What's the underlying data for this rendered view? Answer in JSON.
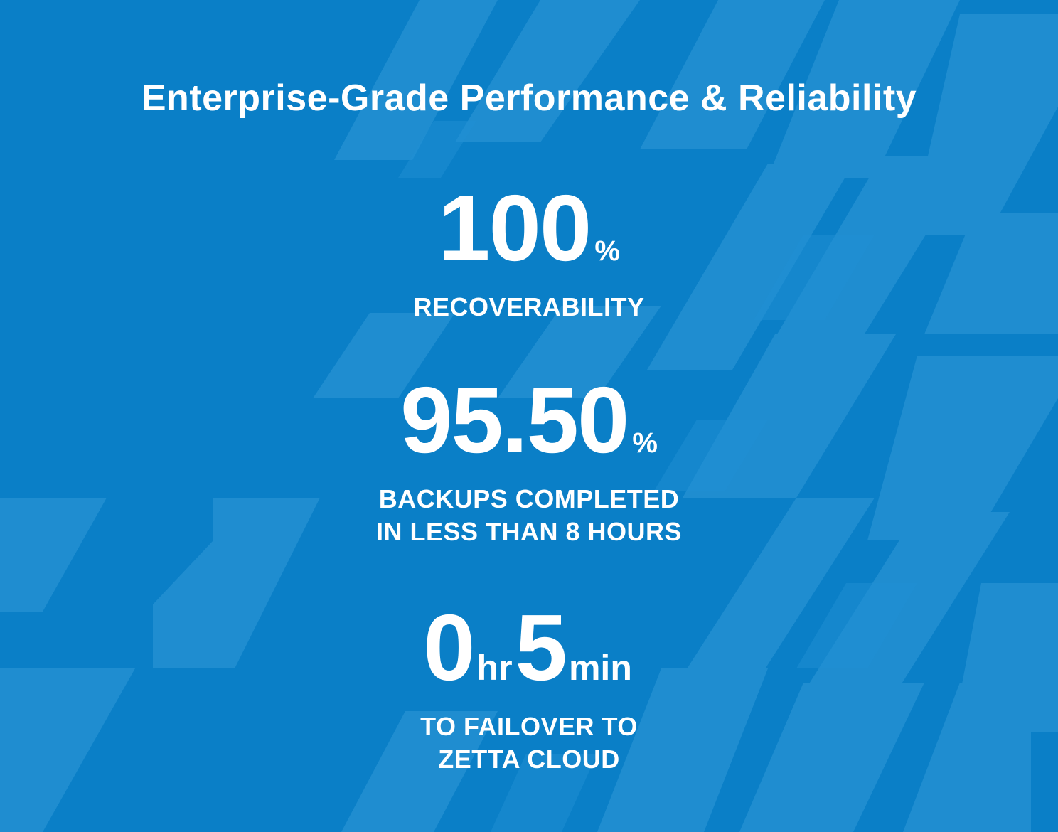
{
  "colors": {
    "background": "#0a7fc7",
    "pattern_light": "#3a9fdc",
    "text": "#ffffff"
  },
  "title": "Enterprise-Grade Performance & Reliability",
  "stats": [
    {
      "value": "100",
      "unit": "%",
      "label": "RECOVERABILITY"
    },
    {
      "value": "95.50",
      "unit": "%",
      "label": "BACKUPS COMPLETED\nIN LESS THAN 8 HOURS"
    },
    {
      "hours_value": "0",
      "hours_unit": "hr",
      "minutes_value": "5",
      "minutes_unit": "min",
      "label": "TO FAILOVER TO\nZETTA CLOUD"
    }
  ]
}
